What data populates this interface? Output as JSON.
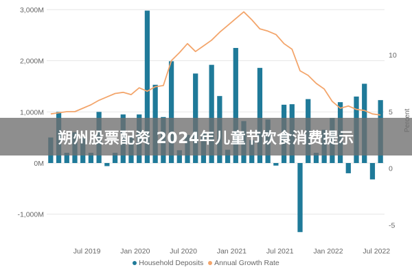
{
  "chart_data": {
    "type": "bar+line",
    "x_tick_labels": [
      "Jul 2019",
      "Jan 2020",
      "Jul 2020",
      "Jan 2021",
      "Jul 2021",
      "Jan 2022",
      "Jul 2022"
    ],
    "series": [
      {
        "name": "Household Deposits",
        "type": "bar",
        "axis": "left",
        "color": "#1f7a99",
        "values": [
          500,
          1000,
          200,
          600,
          500,
          200,
          1000,
          -60,
          200,
          950,
          500,
          950,
          2980,
          1530,
          900,
          1990,
          250,
          550,
          1750,
          580,
          1920,
          1310,
          260,
          2250,
          820,
          450,
          1860,
          850,
          -50,
          1140,
          1150,
          -1350,
          1250,
          200,
          650,
          880,
          1190,
          -200,
          1300,
          1550,
          -320,
          1230
        ]
      },
      {
        "name": "Annual Growth Rate",
        "type": "line",
        "axis": "right",
        "color": "#f3a56b",
        "values": [
          4.8,
          4.9,
          5.0,
          5.0,
          5.3,
          5.6,
          6.0,
          6.3,
          6.6,
          6.7,
          6.5,
          7.1,
          6.8,
          7.2,
          7.3,
          9.5,
          10.2,
          11.0,
          10.3,
          10.8,
          11.3,
          12.0,
          12.6,
          13.2,
          13.8,
          13.1,
          12.3,
          12.1,
          11.8,
          11.0,
          10.5,
          8.6,
          8.2,
          7.5,
          7.0,
          5.9,
          5.3,
          5.5,
          5.2,
          5.1,
          4.8,
          4.7
        ]
      }
    ],
    "y_left": {
      "min": -1500,
      "max": 3000,
      "ticks": [
        -1000,
        0,
        1000,
        2000,
        3000
      ],
      "tick_labels": [
        "-1,000M",
        "0M",
        "1,000M",
        "2,000M",
        "3,000M"
      ]
    },
    "y_right": {
      "min": -6.3,
      "max": 14,
      "ticks": [
        -5,
        0,
        5,
        10
      ],
      "tick_labels": [
        "-5",
        "0",
        "5",
        "10"
      ],
      "label": "Percent"
    },
    "legend": {
      "position": "bottom",
      "items": [
        {
          "label": "Household Deposits",
          "color": "#1f7a99"
        },
        {
          "label": "Annual Growth Rate",
          "color": "#f3a56b"
        }
      ]
    },
    "grid": "horizontal"
  },
  "overlay": {
    "text": "朔州股票配资 2024年儿童节饮食消费提示"
  }
}
